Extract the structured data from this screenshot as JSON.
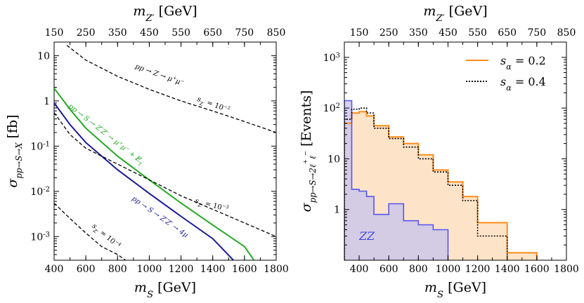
{
  "chart_data": [
    {
      "type": "line",
      "xlabel": "m_S [GeV]",
      "ylabel": "σ_{pp→S→X} [fb]",
      "top_xlabel": "m_{Z'} [GeV]",
      "xlim": [
        400,
        1800
      ],
      "ylim": [
        0.0003,
        20
      ],
      "yscale": "log",
      "x_ticks": [
        "400",
        "600",
        "800",
        "1000",
        "1200",
        "1400",
        "1600",
        "1800"
      ],
      "top_ticks": [
        "150",
        "250",
        "350",
        "450",
        "550",
        "650",
        "750",
        "850"
      ],
      "y_ticks": [
        {
          "label": "10",
          "exp": "",
          "value": 10
        },
        {
          "label": "1",
          "exp": "",
          "value": 1
        },
        {
          "label": "10",
          "exp": "-1",
          "value": 0.1
        },
        {
          "label": "10",
          "exp": "-2",
          "value": 0.01
        },
        {
          "label": "10",
          "exp": "-3",
          "value": 0.001
        }
      ],
      "series": [
        {
          "name": "pp → S → Z'Z' → μ⁺μ⁻ + E̸_T",
          "color": "#22aa22",
          "x": [
            400,
            500,
            600,
            800,
            1000,
            1200,
            1400,
            1600,
            1660
          ],
          "y": [
            1.9,
            0.65,
            0.25,
            0.06,
            0.018,
            0.0055,
            0.0018,
            0.0006,
            0.0003
          ]
        },
        {
          "name": "pp → S → Z'Z' → 4μ",
          "color": "#1a1a99",
          "x": [
            400,
            500,
            600,
            800,
            1000,
            1200,
            1400,
            1530
          ],
          "y": [
            0.9,
            0.3,
            0.12,
            0.03,
            0.009,
            0.0028,
            0.0009,
            0.0003
          ]
        },
        {
          "name": "pp → Z → μ⁺μ⁻, s_Z' = 10⁻²",
          "style": "dashed",
          "color": "#000000",
          "x": [
            480,
            600,
            800,
            1000,
            1200,
            1400,
            1600,
            1800
          ],
          "y": [
            17,
            8,
            3.5,
            1.8,
            1.0,
            0.6,
            0.35,
            0.2
          ]
        },
        {
          "name": "s_Z' = 10⁻³",
          "style": "dashed",
          "color": "#000000",
          "x": [
            400,
            500,
            600,
            800,
            1000,
            1200,
            1400,
            1600,
            1800
          ],
          "y": [
            0.55,
            0.18,
            0.09,
            0.04,
            0.018,
            0.008,
            0.004,
            0.002,
            0.001
          ]
        },
        {
          "name": "s_Z' = 10⁻⁴",
          "style": "dashed",
          "color": "#000000",
          "x": [
            400,
            500,
            600,
            700,
            800,
            850
          ],
          "y": [
            0.0055,
            0.0025,
            0.0012,
            0.0006,
            0.0004,
            0.0003
          ]
        }
      ],
      "annotations": [
        {
          "text": "pp → Z → μ⁺μ⁻",
          "x": 1060,
          "y": 3.4,
          "angle": 20
        },
        {
          "text": "s_Z' = 10⁻²",
          "x": 1400,
          "y": 0.75,
          "angle": 20
        },
        {
          "text": "pp → S → Z'Z' → μ⁺μ⁻ + E̸_T",
          "x": 720,
          "y": 0.17,
          "angle": 38
        },
        {
          "text": "pp → S → Z'Z' → 4μ",
          "x": 1060,
          "y": 0.0025,
          "angle": 35
        },
        {
          "text": "s_Z' = 10⁻³",
          "x": 1390,
          "y": 0.0045,
          "angle": 15
        },
        {
          "text": "s_Z' = 10⁻⁴",
          "x": 720,
          "y": 0.00095,
          "angle": 40
        }
      ]
    },
    {
      "type": "histogram",
      "xlabel": "m_S [GeV]",
      "ylabel": "σ_{pp→S→2ℓ⁺ℓ⁻} [Events]",
      "top_xlabel": "m_{Z'} [GeV]",
      "xlim": [
        300,
        1800
      ],
      "ylim": [
        0.1,
        2000
      ],
      "yscale": "log",
      "x_ticks": [
        "400",
        "600",
        "800",
        "1000",
        "1200",
        "1400",
        "1600",
        "1800"
      ],
      "top_ticks": [
        "150",
        "250",
        "350",
        "450",
        "550",
        "650",
        "750",
        "850"
      ],
      "y_ticks": [
        {
          "label": "10",
          "exp": "3",
          "value": 1000
        },
        {
          "label": "10",
          "exp": "2",
          "value": 100
        },
        {
          "label": "10",
          "exp": "",
          "value": 10
        },
        {
          "label": "1",
          "exp": "",
          "value": 1
        }
      ],
      "bin_edges": [
        300,
        350,
        400,
        450,
        500,
        600,
        700,
        800,
        900,
        1000,
        1100,
        1200,
        1400,
        1600
      ],
      "series": [
        {
          "name": "s_α = 0.2",
          "color": "#ff8c1a",
          "style": "solid",
          "values": [
            50,
            80,
            85,
            70,
            45,
            27,
            20,
            12,
            6,
            3.5,
            1.8,
            0.55,
            0.14
          ]
        },
        {
          "name": "s_α = 0.4",
          "color": "#000000",
          "style": "dotted",
          "values": [
            60,
            95,
            100,
            80,
            40,
            25,
            17,
            10,
            5.5,
            3.0,
            1.5,
            0.3
          ]
        },
        {
          "name": "ZZ",
          "color": "#5555ee",
          "style": "solid",
          "values": [
            140,
            2.5,
            2.3,
            1.8,
            0.8,
            1.3,
            0.6,
            0.5,
            0.4
          ]
        }
      ],
      "legend": [
        {
          "label": "s_α = 0.2",
          "sym": "s",
          "sub": "α",
          "val": " = 0.2",
          "color": "#ff8c1a",
          "style": "solid"
        },
        {
          "label": "s_α = 0.4",
          "sym": "s",
          "sub": "α",
          "val": " = 0.4",
          "color": "#000000",
          "style": "dotted"
        }
      ],
      "annotations": [
        {
          "text": "ZZ",
          "color": "#4444dd"
        }
      ]
    }
  ]
}
